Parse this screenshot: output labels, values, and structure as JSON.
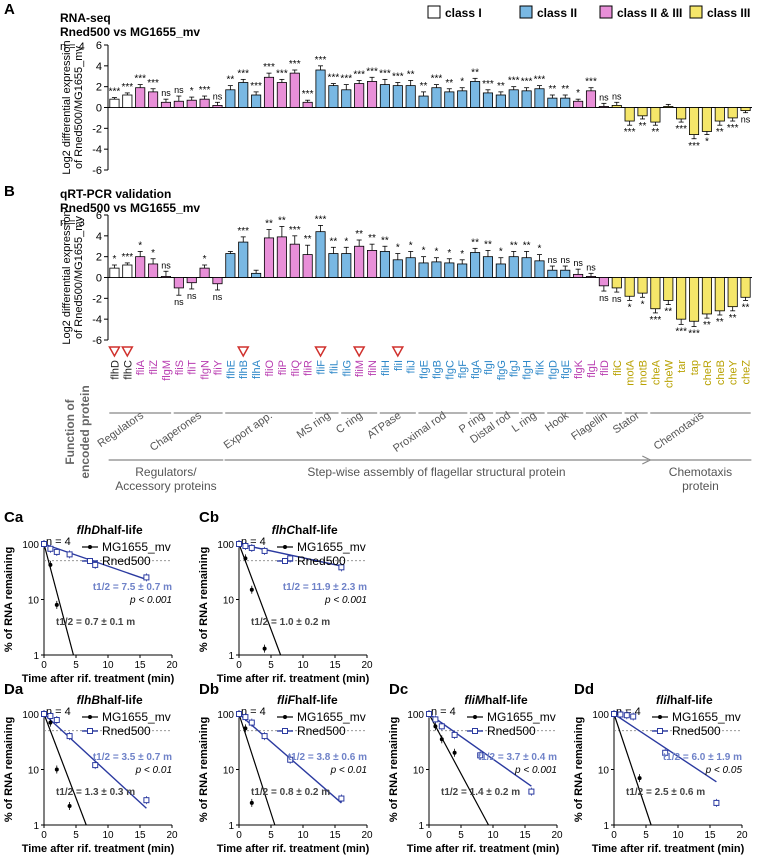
{
  "panel_labels": {
    "A": "A",
    "B": "B",
    "Ca": "Ca",
    "Cb": "Cb",
    "Da": "Da",
    "Db": "Db",
    "Dc": "Dc",
    "Dd": "Dd"
  },
  "colors": {
    "class_I": "#ffffff",
    "class_II": "#79b8e3",
    "class_II_III": "#e88fd8",
    "class_III": "#f5e66a",
    "label_class_I": "#222222",
    "label_class_II": "#2d87c8",
    "label_class_II_III": "#b83bb0",
    "label_class_III": "#b8a100",
    "mv": "#000000",
    "rned": "#2b3aa0",
    "rned_text": "#6f82c8"
  },
  "legend": [
    {
      "key": "I",
      "label": "class I"
    },
    {
      "key": "II",
      "label": "class II"
    },
    {
      "key": "II_III",
      "label": "class II & III"
    },
    {
      "key": "III",
      "label": "class III"
    }
  ],
  "genes": [
    "flhD",
    "flhC",
    "fliA",
    "fliZ",
    "flgM",
    "fliS",
    "fliT",
    "flgN",
    "fliY",
    "flhE",
    "flhB",
    "flhA",
    "fliO",
    "fliP",
    "fliQ",
    "fliR",
    "fliF",
    "fliL",
    "fliG",
    "fliM",
    "fliN",
    "fliH",
    "fliI",
    "fliJ",
    "flgE",
    "flgB",
    "flgC",
    "flgF",
    "flgA",
    "flgI",
    "flgG",
    "flgJ",
    "flgH",
    "fliK",
    "flgD",
    "flgE",
    "flgK",
    "flgL",
    "fliD",
    "fliC",
    "motA",
    "motB",
    "cheA",
    "cheW",
    "tar",
    "tap",
    "cheR",
    "cheB",
    "cheY",
    "cheZ"
  ],
  "gene_classes": [
    "I",
    "I",
    "II_III",
    "II_III",
    "II_III",
    "II_III",
    "II_III",
    "II_III",
    "II_III",
    "II",
    "II",
    "II",
    "II_III",
    "II_III",
    "II_III",
    "II_III",
    "II",
    "II",
    "II",
    "II_III",
    "II_III",
    "II",
    "II",
    "II",
    "II",
    "II",
    "II",
    "II",
    "II",
    "II",
    "II",
    "II",
    "II",
    "II",
    "II",
    "II",
    "II_III",
    "II_III",
    "II_III",
    "III",
    "III",
    "III",
    "III",
    "III",
    "III",
    "III",
    "III",
    "III",
    "III",
    "III"
  ],
  "red_markers": [
    "flhD",
    "flhC",
    "flhB",
    "fliF",
    "fliM",
    "fliI"
  ],
  "chart_data": [
    {
      "id": "A",
      "type": "bar",
      "title": "RNA-seq",
      "subtitle": "Rned500 vs MG1655_mv",
      "n_label": "n = 4",
      "ylabel_line1": "Log2 differential expression",
      "ylabel_line2": "of Rned500/MG1655_mv",
      "ylim": [
        -6,
        6
      ],
      "yticks": [
        "6",
        "4",
        "2",
        "0",
        "-2",
        "-4",
        "-6"
      ],
      "values": [
        0.8,
        1.2,
        1.9,
        1.5,
        0.5,
        0.6,
        0.7,
        0.8,
        0.2,
        1.7,
        2.4,
        1.2,
        2.9,
        2.4,
        3.3,
        0.5,
        3.6,
        2.1,
        1.7,
        2.3,
        2.5,
        2.2,
        2.1,
        2.1,
        1.1,
        1.9,
        1.5,
        1.6,
        2.5,
        1.4,
        1.2,
        1.7,
        1.6,
        1.8,
        0.9,
        0.9,
        0.6,
        1.6,
        0.1,
        0.2,
        -1.3,
        -0.8,
        -1.4,
        0.1,
        -1.1,
        -2.6,
        -2.3,
        -1.3,
        -1.0,
        -0.3
      ],
      "errors": [
        0.15,
        0.2,
        0.3,
        0.3,
        0.3,
        0.5,
        0.3,
        0.3,
        0.3,
        0.4,
        0.3,
        0.3,
        0.4,
        0.3,
        0.3,
        0.2,
        0.4,
        0.2,
        0.5,
        0.3,
        0.4,
        0.5,
        0.3,
        0.5,
        0.4,
        0.3,
        0.3,
        0.3,
        0.3,
        0.3,
        0.3,
        0.3,
        0.3,
        0.3,
        0.3,
        0.3,
        0.2,
        0.3,
        0.3,
        0.3,
        0.4,
        0.3,
        0.3,
        0.2,
        0.3,
        0.4,
        0.3,
        0.4,
        0.3,
        0.2
      ],
      "sig": [
        "***",
        "***",
        "***",
        "***",
        "ns",
        "ns",
        "*",
        "***",
        "ns",
        "**",
        "***",
        "***",
        "***",
        "***",
        "***",
        "***",
        "***",
        "***",
        "***",
        "***",
        "***",
        "***",
        "***",
        "**",
        "**",
        "***",
        "**",
        "*",
        "**",
        "***",
        "**",
        "***",
        "***",
        "***",
        "**",
        "**",
        "*",
        "***",
        "ns",
        "ns",
        "***",
        "**",
        "**",
        "",
        "***",
        "***",
        "*",
        "**",
        "***",
        "ns"
      ]
    },
    {
      "id": "B",
      "type": "bar",
      "title": "qRT-PCR validation",
      "subtitle": "Rned500 vs MG1655_mv",
      "n_label": "n = 3",
      "ylabel_line1": "Log2 differential expression",
      "ylabel_line2": "of Rned500/MG1655_mv",
      "ylim": [
        -6,
        6
      ],
      "yticks": [
        "6",
        "4",
        "2",
        "0",
        "-2",
        "-4",
        "-6"
      ],
      "values": [
        0.9,
        1.2,
        2.0,
        1.3,
        0.1,
        -1.0,
        -0.5,
        0.9,
        -0.6,
        2.3,
        3.4,
        0.4,
        3.8,
        3.9,
        3.2,
        2.2,
        4.4,
        2.3,
        2.3,
        3.0,
        2.6,
        2.5,
        1.7,
        1.9,
        1.4,
        1.5,
        1.4,
        1.3,
        2.4,
        2.0,
        1.3,
        2.0,
        1.9,
        1.6,
        0.7,
        0.7,
        0.3,
        0.1,
        -0.8,
        -1.0,
        -1.8,
        -1.5,
        -3.0,
        -2.2,
        -4.0,
        -4.2,
        -3.5,
        -3.2,
        -2.8,
        -1.9
      ],
      "errors": [
        0.3,
        0.2,
        0.5,
        0.5,
        0.5,
        0.7,
        0.6,
        0.3,
        0.6,
        0.2,
        0.5,
        0.3,
        0.8,
        1.0,
        0.8,
        0.9,
        0.6,
        0.6,
        0.6,
        0.6,
        0.6,
        0.5,
        0.6,
        0.6,
        0.6,
        0.4,
        0.4,
        0.4,
        0.4,
        0.6,
        0.6,
        0.5,
        0.6,
        0.6,
        0.4,
        0.4,
        0.5,
        0.3,
        0.5,
        0.4,
        0.4,
        0.4,
        0.4,
        0.4,
        0.5,
        0.5,
        0.4,
        0.4,
        0.4,
        0.3
      ],
      "sig": [
        "*",
        "***",
        "*",
        "*",
        "ns",
        "ns",
        "ns",
        "*",
        "ns",
        "",
        "***",
        "",
        "**",
        "**",
        "***",
        "**",
        "***",
        "**",
        "*",
        "**",
        "**",
        "**",
        "*",
        "*",
        "*",
        "*",
        "*",
        "*",
        "**",
        "**",
        "*",
        "**",
        "**",
        "*",
        "ns",
        "ns",
        "ns",
        "ns",
        "ns",
        "ns",
        "*",
        "*",
        "***",
        "**",
        "***",
        "***",
        "**",
        "**",
        "**",
        "**"
      ]
    },
    {
      "id": "Ca",
      "type": "scatter",
      "title_gene": "flhD",
      "title_rest": " half-life",
      "n_label": "n = 4",
      "x": [
        0,
        1,
        2,
        4,
        8,
        16
      ],
      "series": [
        {
          "name": "MG1655_mv",
          "values": [
            100,
            42,
            8,
            null,
            null,
            null
          ]
        },
        {
          "name": "Rned500",
          "values": [
            100,
            82,
            72,
            65,
            42,
            25
          ]
        }
      ],
      "fit_mv": [
        [
          0,
          100
        ],
        [
          4.6,
          1
        ]
      ],
      "fit_rned": [
        [
          0,
          100
        ],
        [
          16,
          23
        ]
      ],
      "rned_half": "t1/2 = 7.5 ± 0.7 m",
      "mv_half": "t1/2 = 0.7 ± 0.1 m",
      "p": "p < 0.001"
    },
    {
      "id": "Cb",
      "type": "scatter",
      "title_gene": "flhC",
      "title_rest": " half-life",
      "n_label": "n = 4",
      "x": [
        0,
        1,
        2,
        4,
        8,
        16
      ],
      "series": [
        {
          "name": "MG1655_mv",
          "values": [
            100,
            55,
            15,
            1.3,
            null,
            null
          ]
        },
        {
          "name": "Rned500",
          "values": [
            100,
            92,
            85,
            75,
            55,
            38
          ]
        }
      ],
      "fit_mv": [
        [
          0,
          100
        ],
        [
          6.5,
          1
        ]
      ],
      "fit_rned": [
        [
          0,
          100
        ],
        [
          16,
          40
        ]
      ],
      "rned_half": "t1/2 = 11.9 ± 2.3 m",
      "mv_half": "t1/2 = 1.0 ± 0.2 m",
      "p": "p < 0.001"
    },
    {
      "id": "Da",
      "type": "scatter",
      "title_gene": "flhB",
      "title_rest": " half-life",
      "n_label": "n = 4",
      "x": [
        0,
        1,
        2,
        4,
        8,
        16
      ],
      "series": [
        {
          "name": "MG1655_mv",
          "values": [
            100,
            70,
            10,
            2.2,
            null,
            null
          ]
        },
        {
          "name": "Rned500",
          "values": [
            100,
            92,
            78,
            40,
            12,
            2.8
          ]
        }
      ],
      "fit_mv": [
        [
          0,
          100
        ],
        [
          6.6,
          1
        ]
      ],
      "fit_rned": [
        [
          0,
          100
        ],
        [
          16,
          2
        ]
      ],
      "rned_half": "t1/2 = 3.5 ± 0.7 m",
      "mv_half": "t1/2 = 1.3 ± 0.3 m",
      "p": "p < 0.01"
    },
    {
      "id": "Db",
      "type": "scatter",
      "title_gene": "fliF",
      "title_rest": " half-life",
      "n_label": "n = 4",
      "x": [
        0,
        1,
        2,
        4,
        8,
        16
      ],
      "series": [
        {
          "name": "MG1655_mv",
          "values": [
            100,
            55,
            2.5,
            null,
            null,
            null
          ]
        },
        {
          "name": "Rned500",
          "values": [
            100,
            88,
            70,
            40,
            15,
            3
          ]
        }
      ],
      "fit_mv": [
        [
          0,
          100
        ],
        [
          5.6,
          1
        ]
      ],
      "fit_rned": [
        [
          0,
          100
        ],
        [
          16,
          2.5
        ]
      ],
      "rned_half": "t1/2 = 3.8 ± 0.6 m",
      "mv_half": "t1/2 = 0.8 ± 0.2 m",
      "p": "p < 0.01"
    },
    {
      "id": "Dc",
      "type": "scatter",
      "title_gene": "fliM",
      "title_rest": " half-life",
      "n_label": "n = 4",
      "x": [
        0,
        1,
        2,
        4,
        8,
        16
      ],
      "series": [
        {
          "name": "MG1655_mv",
          "values": [
            100,
            60,
            35,
            20,
            null,
            null
          ]
        },
        {
          "name": "Rned500",
          "values": [
            100,
            80,
            60,
            42,
            18,
            4
          ]
        }
      ],
      "fit_mv": [
        [
          0,
          100
        ],
        [
          9.3,
          1
        ]
      ],
      "fit_rned": [
        [
          0,
          100
        ],
        [
          16,
          5
        ]
      ],
      "rned_half": "t1/2 = 3.7 ± 0.4 m",
      "mv_half": "t1/2 = 1.4 ± 0.2 m",
      "p": "p < 0.001"
    },
    {
      "id": "Dd",
      "type": "scatter",
      "title_gene": "fliI",
      "title_rest": " half-life",
      "n_label": "n = 4",
      "x": [
        0,
        1,
        2,
        3,
        4,
        8,
        16
      ],
      "series": [
        {
          "name": "MG1655_mv",
          "values": [
            100,
            100,
            100,
            null,
            7,
            null,
            null
          ]
        },
        {
          "name": "Rned500",
          "values": [
            100,
            98,
            95,
            90,
            null,
            20,
            2.5
          ]
        }
      ],
      "fit_mv": [
        [
          0,
          100
        ],
        [
          5.8,
          1
        ]
      ],
      "fit_rned": [
        [
          0,
          100
        ],
        [
          16,
          6
        ]
      ],
      "rned_half": "t1/2 = 6.0 ± 1.9 m",
      "mv_half": "t1/2 = 2.5 ± 0.6 m",
      "p": "p < 0.05"
    }
  ],
  "scatter_axes": {
    "xlabel": "Time after rif. treatment (min)",
    "ylabel": "% of RNA remaining",
    "xticks": [
      "0",
      "5",
      "10",
      "15",
      "20"
    ],
    "yticks": [
      "100",
      "10",
      "1"
    ]
  },
  "functions": {
    "axis_label_1": "Function of",
    "axis_label_2": "encoded protein",
    "groups": [
      {
        "label": "Regulators",
        "from": 0,
        "to": 4
      },
      {
        "label": "Chaperones",
        "from": 5,
        "to": 8
      },
      {
        "label": "Export app.",
        "from": 9,
        "to": 15
      },
      {
        "label": "MS ring",
        "from": 16,
        "to": 17
      },
      {
        "label": "C ring",
        "from": 18,
        "to": 20
      },
      {
        "label": "ATPase",
        "from": 21,
        "to": 23
      },
      {
        "label": "Proximal rod",
        "from": 24,
        "to": 27
      },
      {
        "label": "P ring",
        "from": 28,
        "to": 29
      },
      {
        "label": "Distal rod",
        "from": 30,
        "to": 31
      },
      {
        "label": "L ring",
        "from": 32,
        "to": 33
      },
      {
        "label": "Hook",
        "from": 34,
        "to": 36
      },
      {
        "label": "Flagellin",
        "from": 37,
        "to": 39
      },
      {
        "label": "Stator",
        "from": 40,
        "to": 41
      },
      {
        "label": "Chemotaxis",
        "from": 42,
        "to": 49
      }
    ],
    "super_groups": [
      {
        "line1": "Regulators/",
        "line2": "Accessory proteins",
        "from": 0,
        "to": 8,
        "arrow": false
      },
      {
        "line1": "Step-wise assembly of flagellar structural protein",
        "line2": "",
        "from": 9,
        "to": 41,
        "arrow": true
      },
      {
        "line1": "Chemotaxis",
        "line2": "protein",
        "from": 42,
        "to": 49,
        "arrow": false
      }
    ]
  }
}
